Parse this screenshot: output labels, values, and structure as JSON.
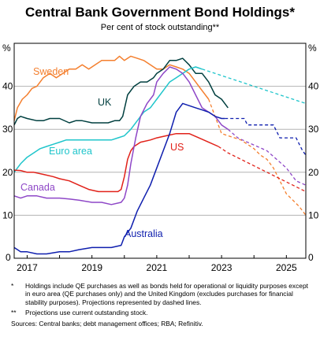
{
  "header": {
    "title": "Central Bank Government Bond Holdings*",
    "subtitle": "Per cent of stock outstanding**"
  },
  "footnotes": [
    {
      "mark": "*",
      "text": "Holdings include QE purchases as well as bonds held for operational or liquidity purposes except in euro area (QE purchases only) and the United Kingdom (excludes purchases for financial stability purposes). Projections represented by dashed lines."
    },
    {
      "mark": "**",
      "text": "Projections use current outstanding stock."
    }
  ],
  "sources": "Sources: Central banks; debt management offices; RBA; Refinitiv.",
  "chart_data": {
    "type": "line",
    "title": "Central Bank Government Bond Holdings*",
    "subtitle": "Per cent of stock outstanding**",
    "y_unit_label": "%",
    "ylim": [
      0,
      50
    ],
    "yticks": [
      0,
      10,
      20,
      30,
      40
    ],
    "xlim": [
      2016.6,
      2025.6
    ],
    "xtick_labels": [
      "2017",
      "2019",
      "2021",
      "2023",
      "2025"
    ],
    "xtick_positions": [
      2017,
      2019,
      2021,
      2023,
      2025
    ],
    "grid": true,
    "series": [
      {
        "name": "Sweden",
        "color": "#f47f2e",
        "x": [
          2016.6,
          2016.7,
          2016.85,
          2017.0,
          2017.15,
          2017.3,
          2017.5,
          2017.7,
          2017.9,
          2018.1,
          2018.3,
          2018.5,
          2018.7,
          2018.9,
          2019.1,
          2019.3,
          2019.5,
          2019.7,
          2019.85,
          2020.0,
          2020.2,
          2020.4,
          2020.6,
          2020.8,
          2021.0,
          2021.2,
          2021.4,
          2021.6,
          2021.8,
          2022.0,
          2022.2,
          2022.4,
          2022.6
        ],
        "y": [
          32,
          35,
          37,
          38,
          39.5,
          40,
          42,
          43,
          42,
          43,
          44,
          44,
          45,
          44,
          45,
          46,
          46,
          46,
          47,
          46,
          47,
          46.5,
          46,
          45,
          44,
          44,
          45,
          44.5,
          44,
          43,
          41,
          39,
          37
        ],
        "proj_x": [
          2022.6,
          2022.8,
          2023.0,
          2023.2,
          2023.4,
          2023.6,
          2023.8,
          2024.0,
          2024.2,
          2024.4,
          2024.6,
          2024.8,
          2025.0,
          2025.2,
          2025.4,
          2025.6
        ],
        "proj_y": [
          37,
          33,
          29,
          28.5,
          28,
          27.5,
          26.5,
          25.5,
          24,
          23,
          21,
          18,
          15,
          13.5,
          12,
          10
        ]
      },
      {
        "name": "UK",
        "color": "#003f3f",
        "x": [
          2016.6,
          2016.7,
          2016.8,
          2017.0,
          2017.3,
          2017.5,
          2017.7,
          2018.0,
          2018.3,
          2018.5,
          2018.7,
          2019.0,
          2019.2,
          2019.5,
          2019.7,
          2019.85,
          2019.95,
          2020.1,
          2020.3,
          2020.5,
          2020.7,
          2020.9,
          2021.0,
          2021.2,
          2021.4,
          2021.6,
          2021.8,
          2022.0,
          2022.2,
          2022.4,
          2022.6,
          2022.8,
          2023.0,
          2023.2
        ],
        "y": [
          31,
          32.5,
          33,
          32.5,
          32,
          32,
          32.5,
          32.5,
          31.5,
          32,
          32,
          31.5,
          31.5,
          31.5,
          32,
          32,
          33,
          38,
          40,
          41,
          41,
          42,
          43,
          44,
          46,
          46,
          46.5,
          45,
          43,
          43,
          41,
          38,
          37,
          35
        ],
        "proj_x": [],
        "proj_y": []
      },
      {
        "name": "Euro area",
        "color": "#1fc5cb",
        "x": [
          2016.6,
          2016.8,
          2017.0,
          2017.2,
          2017.4,
          2017.6,
          2017.8,
          2018.0,
          2018.2,
          2018.4,
          2018.6,
          2018.8,
          2019.0,
          2019.2,
          2019.4,
          2019.6,
          2019.8,
          2020.0,
          2020.2,
          2020.4,
          2020.6,
          2020.8,
          2021.0,
          2021.2,
          2021.4,
          2021.6,
          2021.8,
          2022.0,
          2022.2,
          2022.4
        ],
        "y": [
          20,
          22,
          23.5,
          24.5,
          25.5,
          26,
          26.5,
          27,
          27.5,
          27.5,
          27.5,
          27.5,
          27.5,
          27.5,
          27.5,
          27.5,
          28,
          28.5,
          30,
          32,
          34,
          35,
          37,
          39,
          41,
          42,
          43,
          44,
          44.5,
          44
        ],
        "proj_x": [
          2022.4,
          2022.8,
          2023.2,
          2023.6,
          2024.0,
          2024.4,
          2024.8,
          2025.2,
          2025.6
        ],
        "proj_y": [
          44,
          43,
          42,
          41,
          40,
          39,
          38,
          37,
          36
        ]
      },
      {
        "name": "US",
        "color": "#e12119",
        "x": [
          2016.6,
          2016.8,
          2017.0,
          2017.2,
          2017.5,
          2017.8,
          2018.0,
          2018.3,
          2018.6,
          2018.9,
          2019.2,
          2019.5,
          2019.8,
          2019.9,
          2020.0,
          2020.1,
          2020.2,
          2020.3,
          2020.5,
          2020.8,
          2021.0,
          2021.3,
          2021.6,
          2021.8,
          2022.0,
          2022.3,
          2022.6,
          2022.9
        ],
        "y": [
          20.5,
          20.4,
          20,
          20,
          19.5,
          19,
          18.5,
          18,
          17,
          16,
          15.5,
          15.5,
          15.5,
          16,
          19,
          23,
          25,
          26,
          27,
          27.5,
          28,
          28.5,
          29,
          29,
          29,
          28,
          27,
          26
        ],
        "proj_x": [
          2022.9,
          2023.2,
          2023.6,
          2024.0,
          2024.4,
          2024.8,
          2025.2,
          2025.6
        ],
        "proj_y": [
          26,
          24.5,
          23,
          21.5,
          20,
          18.5,
          17,
          15.5
        ]
      },
      {
        "name": "Canada",
        "color": "#8e47c7",
        "x": [
          2016.6,
          2016.8,
          2017.0,
          2017.3,
          2017.6,
          2018.0,
          2018.3,
          2018.6,
          2019.0,
          2019.3,
          2019.6,
          2019.9,
          2020.0,
          2020.1,
          2020.2,
          2020.35,
          2020.5,
          2020.7,
          2020.9,
          2021.0,
          2021.2,
          2021.4,
          2021.6,
          2021.8,
          2022.0,
          2022.2,
          2022.4,
          2022.6,
          2022.8,
          2023.0,
          2023.2
        ],
        "y": [
          14.5,
          14,
          14.5,
          14.5,
          14,
          14,
          13.8,
          13.5,
          13,
          13,
          12.5,
          13,
          14,
          17,
          22,
          28,
          33,
          36,
          38,
          41,
          43,
          44.5,
          44,
          43,
          41,
          38,
          35,
          34,
          33,
          31,
          30
        ],
        "proj_x": [
          2023.2,
          2023.5,
          2023.8,
          2024.1,
          2024.4,
          2024.7,
          2025.0,
          2025.3,
          2025.6
        ],
        "proj_y": [
          30,
          28,
          27,
          26,
          25,
          23,
          21,
          18,
          17
        ]
      },
      {
        "name": "Australia",
        "color": "#0f1fae",
        "x": [
          2016.6,
          2016.8,
          2017.0,
          2017.3,
          2017.6,
          2018.0,
          2018.3,
          2018.6,
          2019.0,
          2019.3,
          2019.6,
          2019.9,
          2020.0,
          2020.2,
          2020.4,
          2020.6,
          2020.8,
          2021.0,
          2021.2,
          2021.4,
          2021.6,
          2021.8,
          2022.0,
          2022.2,
          2022.4,
          2022.6,
          2022.8,
          2023.0,
          2023.1
        ],
        "y": [
          2.5,
          1.5,
          1.5,
          1,
          1,
          1.5,
          1.5,
          2,
          2.5,
          2.5,
          2.5,
          3,
          5,
          7,
          11,
          14,
          17,
          21,
          25,
          29,
          34,
          36,
          35.5,
          35,
          34.5,
          34,
          33,
          32.5,
          32.5
        ],
        "proj_x": [
          2023.1,
          2023.4,
          2023.7,
          2023.8,
          2024.0,
          2024.3,
          2024.6,
          2024.8,
          2025.0,
          2025.3,
          2025.5,
          2025.6
        ],
        "proj_y": [
          32.5,
          32.5,
          32.5,
          31,
          31,
          31,
          31,
          28,
          28,
          28,
          25,
          24
        ]
      }
    ]
  }
}
